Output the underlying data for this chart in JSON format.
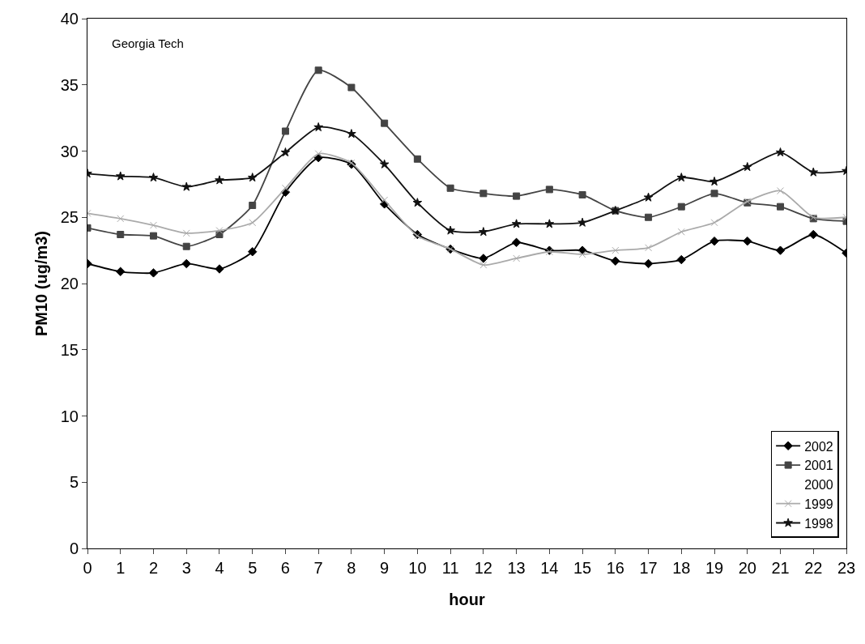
{
  "chart_data": {
    "type": "line",
    "xlabel": "hour",
    "ylabel": "PM10 (ug/m3)",
    "annotations": [
      "Georgia Tech"
    ],
    "x": [
      0,
      1,
      2,
      3,
      4,
      5,
      6,
      7,
      8,
      9,
      10,
      11,
      12,
      13,
      14,
      15,
      16,
      17,
      18,
      19,
      20,
      21,
      22,
      23
    ],
    "xlim": [
      0,
      23
    ],
    "xticks": [
      0,
      1,
      2,
      3,
      4,
      5,
      6,
      7,
      8,
      9,
      10,
      11,
      12,
      13,
      14,
      15,
      16,
      17,
      18,
      19,
      20,
      21,
      22,
      23
    ],
    "ylim": [
      0,
      40
    ],
    "yticks": [
      0,
      5,
      10,
      15,
      20,
      25,
      30,
      35,
      40
    ],
    "grid": false,
    "legend": "bottom right",
    "line_style": "solid",
    "series": [
      {
        "name": "2002",
        "color": "#000000",
        "marker": "diamond",
        "values": [
          21.5,
          20.9,
          20.8,
          21.5,
          21.1,
          22.4,
          26.9,
          29.5,
          29.0,
          26.0,
          23.7,
          22.6,
          21.9,
          23.1,
          22.5,
          22.5,
          21.7,
          21.5,
          21.8,
          23.2,
          23.2,
          22.5,
          23.7,
          22.3
        ]
      },
      {
        "name": "2001",
        "color": "#444444",
        "marker": "square",
        "values": [
          24.2,
          23.7,
          23.6,
          22.8,
          23.7,
          25.9,
          31.5,
          36.1,
          34.8,
          32.1,
          29.4,
          27.2,
          26.8,
          26.6,
          27.1,
          26.7,
          25.5,
          25.0,
          25.8,
          26.8,
          26.1,
          25.8,
          24.9,
          24.7
        ]
      },
      {
        "name": "2000",
        "values": [
          null,
          null,
          null,
          null,
          null,
          null,
          null,
          null,
          null,
          null,
          null,
          null,
          null,
          null,
          null,
          null,
          null,
          null,
          null,
          null,
          null,
          null,
          null,
          null
        ]
      },
      {
        "name": "1999",
        "color": "#aaaaaa",
        "marker": "cross",
        "values": [
          25.3,
          24.9,
          24.4,
          23.8,
          24.0,
          24.6,
          27.2,
          29.8,
          29.1,
          26.3,
          23.6,
          22.6,
          21.4,
          21.9,
          22.4,
          22.2,
          22.5,
          22.7,
          23.9,
          24.6,
          26.2,
          27.0,
          25.0,
          25.0
        ]
      },
      {
        "name": "1998",
        "color": "#111111",
        "marker": "star",
        "values": [
          28.3,
          28.1,
          28.0,
          27.3,
          27.8,
          28.0,
          29.9,
          31.8,
          31.3,
          29.0,
          26.1,
          24.0,
          23.9,
          24.5,
          24.5,
          24.6,
          25.5,
          26.5,
          28.0,
          27.7,
          28.8,
          29.9,
          28.4,
          28.5
        ]
      }
    ]
  }
}
